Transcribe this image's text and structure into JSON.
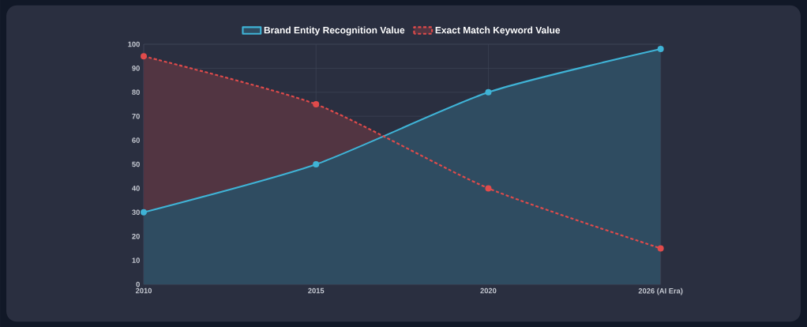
{
  "chart_data": {
    "type": "area",
    "categories": [
      "2010",
      "2015",
      "2020",
      "2026 (AI Era)"
    ],
    "series": [
      {
        "name": "Brand Entity Recognition Value",
        "color": "#3fb3d6",
        "values": [
          30,
          50,
          80,
          98
        ],
        "line_style": "solid"
      },
      {
        "name": "Exact Match Keyword Value",
        "color": "#e04b4b",
        "values": [
          95,
          75,
          40,
          15
        ],
        "line_style": "dashed"
      }
    ],
    "ylim": [
      0,
      100
    ],
    "yticks": [
      0,
      10,
      20,
      30,
      40,
      50,
      60,
      70,
      80,
      90,
      100
    ],
    "grid": true,
    "legend": "top",
    "marker": "circle"
  }
}
